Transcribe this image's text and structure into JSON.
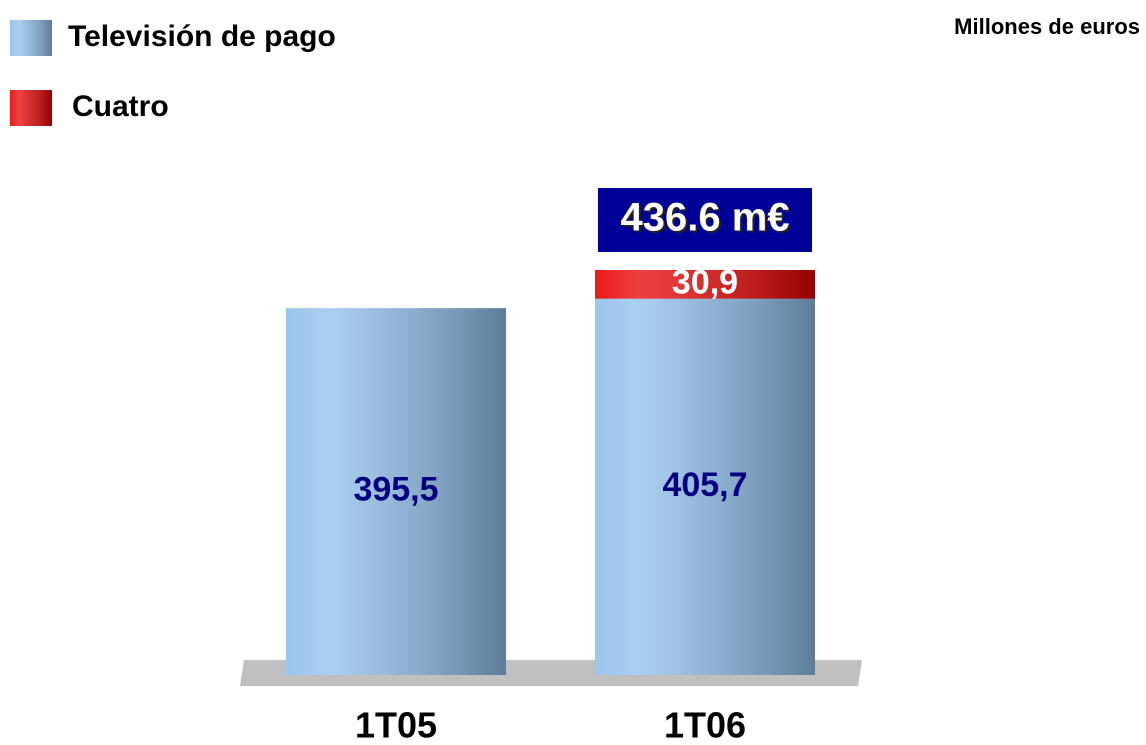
{
  "chart_data": {
    "type": "stacked_bar",
    "unit_label": "Millones de euros",
    "categories": [
      "1T05",
      "1T06"
    ],
    "series": [
      {
        "name": "Televisión de pago",
        "color": "#8fbfec",
        "values": [
          395.5,
          405.7
        ],
        "value_labels": [
          "395,5",
          "405,7"
        ],
        "label_color": "#000080"
      },
      {
        "name": "Cuatro",
        "color": "#e80000",
        "values": [
          null,
          30.9
        ],
        "value_labels": [
          null,
          "30,9"
        ],
        "label_color": "#ffffff"
      }
    ],
    "annotations": [
      {
        "text": "436.6 m€",
        "category": 1
      }
    ]
  }
}
